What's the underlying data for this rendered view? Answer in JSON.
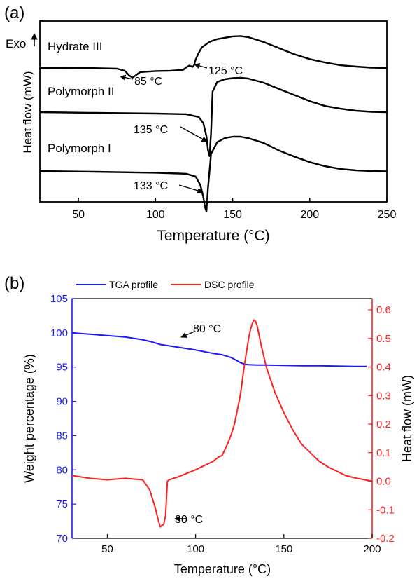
{
  "chart_data": [
    {
      "panel_label": "(a)",
      "type": "line",
      "xlabel": "Temperature (°C)",
      "ylabel": "Heat flow (mW)",
      "y_corner_label": "Exo",
      "xlim": [
        25,
        250
      ],
      "xticks": [
        50,
        100,
        150,
        200,
        250
      ],
      "series": [
        {
          "name": "Hydrate III",
          "x": [
            25,
            60,
            75,
            80,
            83,
            85,
            87,
            90,
            100,
            110,
            118,
            120,
            122,
            124,
            125,
            126,
            128,
            130,
            135,
            140,
            150,
            155,
            160,
            170,
            180,
            190,
            200,
            210,
            220,
            230,
            240,
            250
          ],
          "y": [
            0,
            -0.02,
            -0.1,
            -0.4,
            -1.1,
            -1.4,
            -1.1,
            -0.6,
            -0.45,
            -0.4,
            -0.25,
            0.1,
            0.35,
            0.15,
            0.4,
            1.2,
            2.2,
            3.0,
            3.8,
            4.2,
            4.6,
            4.65,
            4.5,
            3.8,
            2.9,
            2.0,
            1.3,
            0.8,
            0.4,
            0.2,
            0.05,
            0.0
          ]
        },
        {
          "name": "Polymorph II",
          "x": [
            25,
            60,
            100,
            120,
            128,
            131,
            133,
            134,
            135,
            136,
            137,
            140,
            145,
            150,
            155,
            160,
            170,
            180,
            190,
            200,
            210,
            220,
            230,
            240,
            250
          ],
          "y": [
            0,
            -0.1,
            -0.2,
            -0.3,
            -0.7,
            -1.6,
            -3.5,
            -5.5,
            -6.4,
            -3,
            3.0,
            4.4,
            4.8,
            4.95,
            5.0,
            4.9,
            4.3,
            3.4,
            2.5,
            1.6,
            0.9,
            0.5,
            0.2,
            0.05,
            0.0
          ]
        },
        {
          "name": "Polymorph I",
          "x": [
            25,
            60,
            100,
            120,
            126,
            129,
            131,
            132,
            133,
            134,
            136,
            140,
            145,
            150,
            155,
            160,
            170,
            180,
            190,
            200,
            210,
            220,
            230,
            240,
            250
          ],
          "y": [
            0,
            -0.1,
            -0.25,
            -0.4,
            -0.8,
            -2.0,
            -3.8,
            -5.2,
            -5.9,
            -2.5,
            2.5,
            4.2,
            4.8,
            5.0,
            5.0,
            4.8,
            4.1,
            3.0,
            2.1,
            1.3,
            0.7,
            0.3,
            0.1,
            0.0,
            -0.05
          ]
        }
      ],
      "annotations": [
        {
          "text": "85 °C",
          "x": 85
        },
        {
          "text": "125 °C",
          "x": 125
        },
        {
          "text": "135 °C",
          "x": 135
        },
        {
          "text": "133 °C",
          "x": 133
        }
      ]
    },
    {
      "panel_label": "(b)",
      "type": "line",
      "xlabel": "Temperature (°C)",
      "ylabel": "Weight percentage (%)",
      "ylabel_right": "Heat flow (mW)",
      "xlim": [
        30,
        200
      ],
      "ylim": [
        70,
        105
      ],
      "ylim_right": [
        -0.2,
        0.65
      ],
      "xticks": [
        50,
        100,
        150,
        200
      ],
      "yticks": [
        70,
        75,
        80,
        85,
        90,
        95,
        100,
        105
      ],
      "yticks_right": [
        -0.2,
        -0.1,
        0.0,
        0.1,
        0.2,
        0.3,
        0.4,
        0.5,
        0.6
      ],
      "legend": "top-left",
      "colors": {
        "tga": "#1a1aff",
        "dsc": "#ff2020",
        "axis_left": "#1a1aff",
        "axis_right": "#ff2020"
      },
      "series": [
        {
          "name": "TGA profile",
          "axis": "left",
          "x": [
            30,
            40,
            50,
            60,
            70,
            75,
            80,
            85,
            90,
            100,
            110,
            115,
            120,
            123,
            125,
            128,
            130,
            135,
            140,
            150,
            160,
            170,
            180,
            190,
            197
          ],
          "y": [
            100.0,
            99.8,
            99.6,
            99.4,
            99.0,
            98.7,
            98.3,
            98.1,
            97.9,
            97.5,
            97.0,
            96.8,
            96.4,
            96.0,
            95.7,
            95.4,
            95.35,
            95.3,
            95.3,
            95.25,
            95.2,
            95.2,
            95.15,
            95.1,
            95.1
          ]
        },
        {
          "name": "DSC profile",
          "axis": "right",
          "x": [
            30,
            40,
            50,
            60,
            70,
            74,
            77,
            79,
            80,
            82,
            83,
            84,
            85,
            90,
            100,
            110,
            113,
            115,
            118,
            120,
            122,
            124,
            125,
            126,
            127,
            128,
            129,
            130,
            131,
            132,
            133,
            134,
            135,
            137,
            140,
            145,
            150,
            155,
            160,
            165,
            170,
            175,
            180,
            185,
            190,
            195,
            200
          ],
          "y": [
            0.02,
            0.01,
            0.005,
            0.01,
            0.005,
            -0.03,
            -0.09,
            -0.14,
            -0.16,
            -0.15,
            -0.12,
            0.0,
            0.005,
            0.015,
            0.04,
            0.07,
            0.085,
            0.09,
            0.13,
            0.16,
            0.2,
            0.26,
            0.29,
            0.33,
            0.38,
            0.42,
            0.46,
            0.5,
            0.53,
            0.55,
            0.565,
            0.56,
            0.54,
            0.48,
            0.4,
            0.31,
            0.24,
            0.18,
            0.13,
            0.1,
            0.07,
            0.05,
            0.035,
            0.02,
            0.012,
            0.006,
            0.0
          ]
        }
      ],
      "annotations": [
        {
          "text": "80 °C",
          "series": "TGA profile",
          "x": 80
        },
        {
          "text": "80 °C",
          "series": "DSC profile",
          "x": 80
        }
      ]
    }
  ]
}
